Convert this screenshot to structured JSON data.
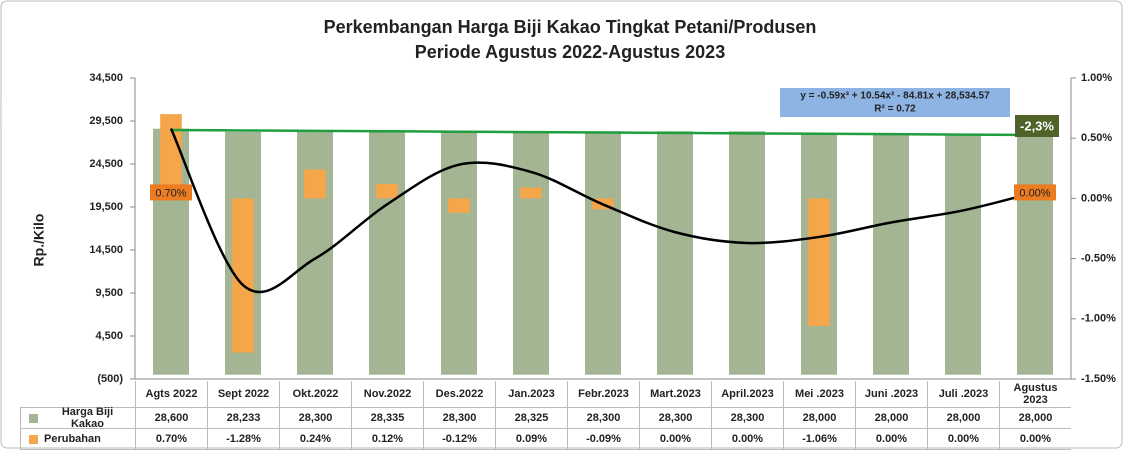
{
  "chart_data": {
    "type": "bar",
    "title": "Perkembangan Harga Biji Kakao Tingkat Petani/Produsen",
    "subtitle": "Periode Agustus 2022-Agustus 2023",
    "ylabel": "Rp./Kilo",
    "categories": [
      "Agts 2022",
      "Sept 2022",
      "Okt.2022",
      "Nov.2022",
      "Des.2022",
      "Jan.2023",
      "Febr.2023",
      "Mart.2023",
      "April.2023",
      "Mei .2023",
      "Juni .2023",
      "Juli .2023",
      "Agustus 2023"
    ],
    "series": [
      {
        "name": "Harga  Biji Kakao",
        "color": "#a3b593",
        "axis": "y",
        "values": [
          28600,
          28233,
          28300,
          28335,
          28300,
          28325,
          28300,
          28300,
          28300,
          28000,
          28000,
          28000,
          28000
        ],
        "value_labels": [
          "28,600",
          "28,233",
          "28,300",
          "28,335",
          "28,300",
          "28,325",
          "28,300",
          "28,300",
          "28,300",
          "28,000",
          "28,000",
          "28,000",
          "28,000"
        ]
      },
      {
        "name": "Perubahan",
        "color": "#f5a54a",
        "axis": "y2",
        "values": [
          0.7,
          -1.28,
          0.24,
          0.12,
          -0.12,
          0.09,
          -0.09,
          0.0,
          0.0,
          -1.06,
          0.0,
          0.0,
          0.0
        ],
        "value_labels": [
          "0.70%",
          "-1.28%",
          "0.24%",
          "0.12%",
          "-0.12%",
          "0.09%",
          "-0.09%",
          "0.00%",
          "0.00%",
          "-1.06%",
          "0.00%",
          "0.00%",
          "0.00%"
        ]
      }
    ],
    "trendlines": [
      {
        "color": "#1e9e3e",
        "axis": "y",
        "values": [
          28450,
          28402,
          28353,
          28305,
          28257,
          28208,
          28160,
          28112,
          28063,
          28015,
          27967,
          27918,
          27870
        ]
      },
      {
        "color": "#000000",
        "axis": "y2",
        "values": [
          0.58,
          -0.72,
          -0.5,
          -0.05,
          0.28,
          0.22,
          -0.05,
          -0.28,
          -0.37,
          -0.32,
          -0.2,
          -0.1,
          0.05
        ]
      }
    ],
    "point_labels": [
      {
        "index": 0,
        "text": "0.70%"
      },
      {
        "index": 12,
        "text": "0.00%"
      }
    ],
    "annotations": [
      "y = -0.59x³ + 10.54x² - 84.81x + 28,534.57",
      "R² = 0.72",
      "-2,3%"
    ],
    "ylim": [
      -500,
      34500
    ],
    "yticks": [
      {
        "value": 34500,
        "label": "34,500"
      },
      {
        "value": 29500,
        "label": "29,500"
      },
      {
        "value": 24500,
        "label": "24,500"
      },
      {
        "value": 19500,
        "label": "19,500"
      },
      {
        "value": 14500,
        "label": "14,500"
      },
      {
        "value": 9500,
        "label": "9,500"
      },
      {
        "value": 4500,
        "label": "4,500"
      },
      {
        "value": -500,
        "label": "(500)"
      }
    ],
    "y2lim": [
      -1.5,
      1.0
    ],
    "y2ticks": [
      {
        "value": 1.0,
        "label": "1.00%"
      },
      {
        "value": 0.5,
        "label": "0.50%"
      },
      {
        "value": 0,
        "label": "0.00%"
      },
      {
        "value": -0.5,
        "label": "-0.50%"
      },
      {
        "value": -1.0,
        "label": "-1.00%"
      },
      {
        "value": -1.5,
        "label": "-1.50%"
      }
    ],
    "grid": false
  }
}
